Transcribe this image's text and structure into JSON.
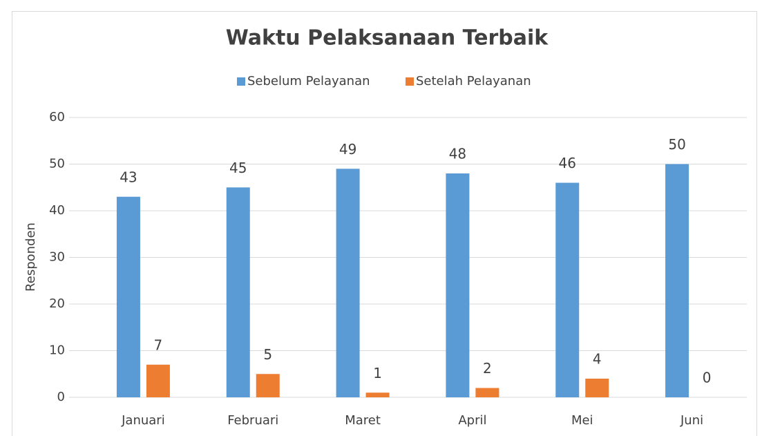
{
  "chart_data": {
    "type": "bar",
    "title": "Waktu Pelaksanaan Terbaik",
    "y_label": "Responden",
    "categories": [
      "Januari",
      "Februari",
      "Maret",
      "April",
      "Mei",
      "Juni"
    ],
    "series": [
      {
        "name": "Sebelum Pelayanan",
        "color": "#5b9bd5",
        "values": [
          43,
          45,
          49,
          48,
          46,
          50
        ]
      },
      {
        "name": "Setelah Pelayanan",
        "color": "#ed7d31",
        "values": [
          7,
          5,
          1,
          2,
          4,
          0
        ]
      }
    ],
    "ylim": [
      0,
      60
    ],
    "yticks": [
      0,
      10,
      20,
      30,
      40,
      50,
      60
    ],
    "grid": true,
    "legend": "top",
    "data_labels": true
  }
}
